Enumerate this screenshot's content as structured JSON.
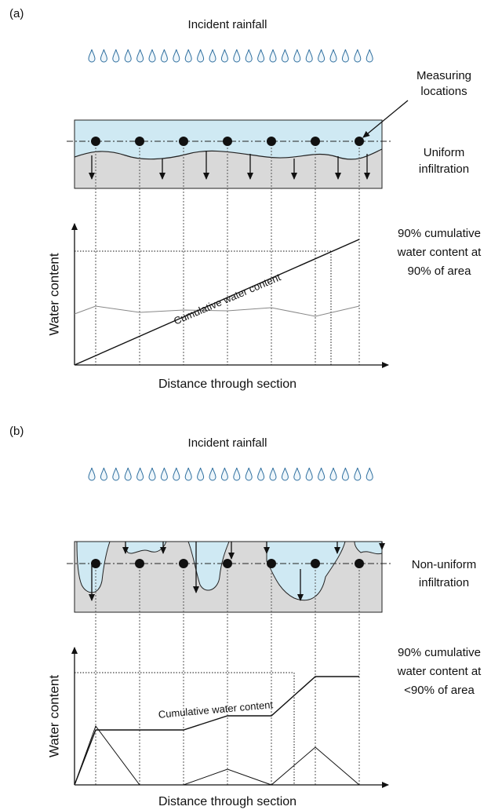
{
  "panels": [
    {
      "label": "(a)",
      "rainfall": "Incident rainfall",
      "measuring": [
        "Measuring",
        "locations"
      ],
      "infiltration": [
        "Uniform",
        "infiltration"
      ],
      "threshold_note": [
        "90% cumulative",
        "water content at",
        "90% of area"
      ],
      "y_axis": "Water content",
      "curve_label": "Cumulative water content",
      "x_axis": "Distance through section"
    },
    {
      "label": "(b)",
      "rainfall": "Incident rainfall",
      "infiltration": [
        "Non-uniform",
        "infiltration"
      ],
      "threshold_note": [
        "90% cumulative",
        "water content at",
        "<90% of area"
      ],
      "y_axis": "Water content",
      "curve_label": "Cumulative water content",
      "x_axis": "Distance through section"
    }
  ]
}
